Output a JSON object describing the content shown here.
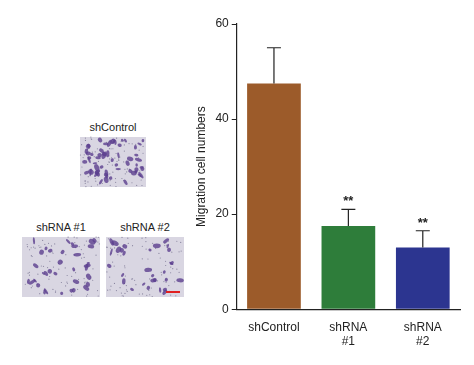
{
  "chart_data": {
    "type": "bar",
    "y_label": "Migration cell numbers",
    "categories": [
      "shControl",
      "shRNA #1",
      "shRNA #2"
    ],
    "values": [
      47.5,
      17.5,
      13
    ],
    "errors": [
      7.5,
      3.5,
      3.5
    ],
    "significance": [
      null,
      "**",
      "**"
    ],
    "colors": [
      "#9c5b2a",
      "#2e7d3a",
      "#2c3590"
    ],
    "ylim": [
      0,
      60
    ],
    "yticks": [
      0,
      20,
      40,
      60
    ],
    "grid": false
  },
  "micrograph_labels": [
    "shControl",
    "shRNA #1",
    "shRNA #2"
  ]
}
